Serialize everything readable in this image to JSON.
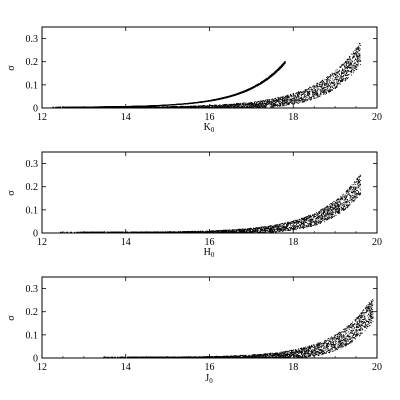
{
  "chart_data": [
    {
      "type": "scatter",
      "xlabel": "K",
      "xlabel_sub": "0",
      "ylabel": "σ",
      "xlim": [
        12,
        20
      ],
      "ylim": [
        0,
        0.35
      ],
      "xticks": [
        12,
        14,
        16,
        18,
        20
      ],
      "yticks": [
        0,
        0.1,
        0.2,
        0.3
      ],
      "yticklabels": [
        "0",
        "0.1",
        "0.2",
        "0.3"
      ],
      "grid": false,
      "bands": [
        {
          "x_start": 12.2,
          "x_end": 17.8,
          "sigma_at_end": 0.205,
          "sigma_spread": 0.01,
          "growth": 0.48
        },
        {
          "x_start": 12.2,
          "x_end": 19.6,
          "sigma_at_end": 0.29,
          "sigma_spread": 0.1,
          "growth": 0.44
        }
      ]
    },
    {
      "type": "scatter",
      "xlabel": "H",
      "xlabel_sub": "0",
      "ylabel": "σ",
      "xlim": [
        12,
        20
      ],
      "ylim": [
        0,
        0.35
      ],
      "xticks": [
        12,
        14,
        16,
        18,
        20
      ],
      "yticks": [
        0,
        0.1,
        0.2,
        0.3
      ],
      "yticklabels": [
        "0",
        "0.1",
        "0.2",
        "0.3"
      ],
      "grid": false,
      "bands": [
        {
          "x_start": 12.4,
          "x_end": 19.6,
          "sigma_at_end": 0.26,
          "sigma_spread": 0.09,
          "growth": 0.46
        }
      ]
    },
    {
      "type": "scatter",
      "xlabel": "J",
      "xlabel_sub": "0",
      "ylabel": "σ",
      "xlim": [
        12,
        20
      ],
      "ylim": [
        0,
        0.35
      ],
      "xticks": [
        12,
        14,
        16,
        18,
        20
      ],
      "yticks": [
        0,
        0.1,
        0.2,
        0.3
      ],
      "yticklabels": [
        "0",
        "0.1",
        "0.2",
        "0.3"
      ],
      "grid": false,
      "bands": [
        {
          "x_start": 13.4,
          "x_end": 19.9,
          "sigma_at_end": 0.27,
          "sigma_spread": 0.11,
          "growth": 0.5
        }
      ]
    }
  ]
}
